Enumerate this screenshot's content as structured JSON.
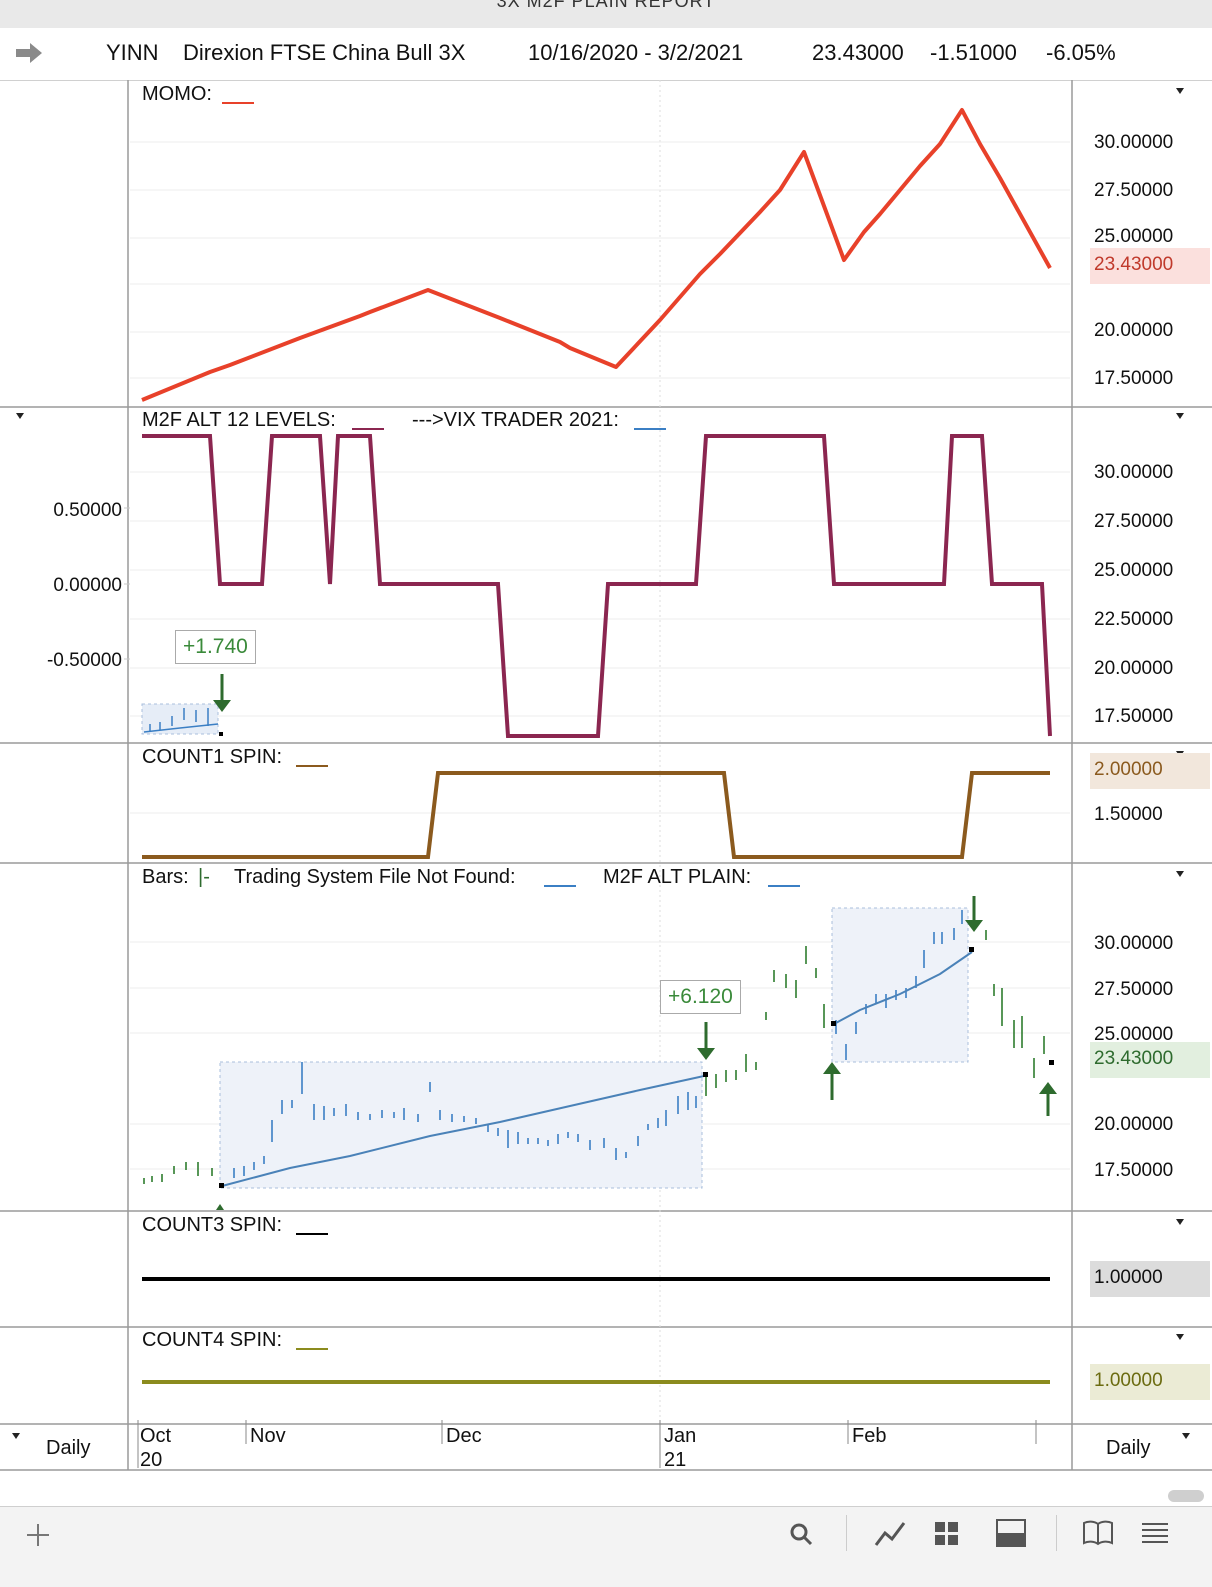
{
  "window": {
    "title": "3X M2F PLAIN REPORT"
  },
  "header": {
    "symbol": "YINN",
    "name": "Direxion FTSE China Bull 3X",
    "date_range": "10/16/2020 - 3/2/2021",
    "last": "23.43000",
    "change": "-1.51000",
    "change_pct": "-6.05%"
  },
  "panes": {
    "momo": {
      "label": "MOMO:",
      "series_color": "#e8412a",
      "axis": [
        "30.00000",
        "27.50000",
        "25.00000",
        "20.00000",
        "17.50000"
      ],
      "last_value": "23.43000"
    },
    "m2f": {
      "label": "M2F ALT 12 LEVELS:",
      "label2": "--->VIX TRADER 2021:",
      "series_color": "#8b2650",
      "left_axis": [
        "0.50000",
        "0.00000",
        "-0.50000"
      ],
      "axis": [
        "30.00000",
        "27.50000",
        "25.00000",
        "22.50000",
        "20.00000",
        "17.50000"
      ],
      "callout": "+1.740"
    },
    "count1": {
      "label": "COUNT1 SPIN:",
      "series_color": "#8b5a1e",
      "axis_value": "2.00000",
      "axis": [
        "1.50000"
      ]
    },
    "bars": {
      "label": "Bars:",
      "label_suffix": "|-",
      "label2": "Trading System File Not Found:",
      "label3": "M2F ALT PLAIN:",
      "axis": [
        "30.00000",
        "27.50000",
        "25.00000",
        "20.00000",
        "17.50000"
      ],
      "last_value": "23.43000",
      "callout": "+6.120"
    },
    "count3": {
      "label": "COUNT3 SPIN:",
      "series_color": "#000000",
      "axis_value": "1.00000"
    },
    "count4": {
      "label": "COUNT4 SPIN:",
      "series_color": "#8b8b1e",
      "axis_value": "1.00000"
    }
  },
  "x_axis": {
    "months": [
      "Oct",
      "Nov",
      "Dec",
      "Jan",
      "Feb"
    ],
    "years": [
      "20",
      "21"
    ],
    "period_left": "Daily",
    "period_right": "Daily"
  },
  "chart_data": [
    {
      "type": "line",
      "title": "MOMO",
      "x": [
        "Oct 16",
        "Oct 30",
        "Nov 25",
        "Dec 24",
        "Jan 21",
        "Feb 1",
        "Feb 17",
        "Mar 2"
      ],
      "values": [
        16.5,
        18.0,
        22.0,
        18.2,
        29.5,
        24.0,
        31.5,
        23.43
      ],
      "ylim": [
        16.0,
        32.0
      ]
    },
    {
      "type": "line",
      "title": "M2F ALT 12 LEVELS",
      "x": [
        "Oct 16",
        "Oct 22",
        "Oct 26",
        "Oct 30",
        "Nov 3",
        "Nov 5",
        "Nov 9",
        "Nov 26",
        "Dec 17",
        "Dec 31",
        "Jan 20",
        "Feb 11",
        "Feb 18",
        "Mar 1",
        "Mar 2"
      ],
      "values": [
        1,
        1,
        0,
        0,
        1,
        0,
        1,
        0,
        0,
        -1,
        0,
        1,
        0,
        1,
        -1
      ],
      "ylim": [
        -1,
        1
      ]
    },
    {
      "type": "line",
      "title": "COUNT1 SPIN",
      "x": [
        "Oct 16",
        "Nov 26",
        "Jan 5",
        "Feb 15",
        "Mar 2"
      ],
      "values": [
        1,
        2,
        1,
        2,
        2
      ],
      "ylim": [
        1,
        2
      ]
    },
    {
      "type": "line",
      "title": "M2F ALT PLAIN",
      "x": [
        "Oct 16",
        "Nov 2",
        "Dec 1",
        "Dec 31",
        "Jan 14",
        "Jan 28",
        "Feb 12",
        "Feb 22",
        "Mar 2"
      ],
      "values": [
        17.0,
        16.6,
        19.0,
        22.3,
        24.5,
        22.5,
        27.5,
        30.5,
        23.43
      ],
      "ylim": [
        16.0,
        32.0
      ]
    },
    {
      "type": "line",
      "title": "COUNT3 SPIN",
      "values": [
        1,
        1
      ],
      "ylim": [
        0,
        2
      ]
    },
    {
      "type": "line",
      "title": "COUNT4 SPIN",
      "values": [
        1,
        1
      ],
      "ylim": [
        0,
        2
      ]
    }
  ]
}
